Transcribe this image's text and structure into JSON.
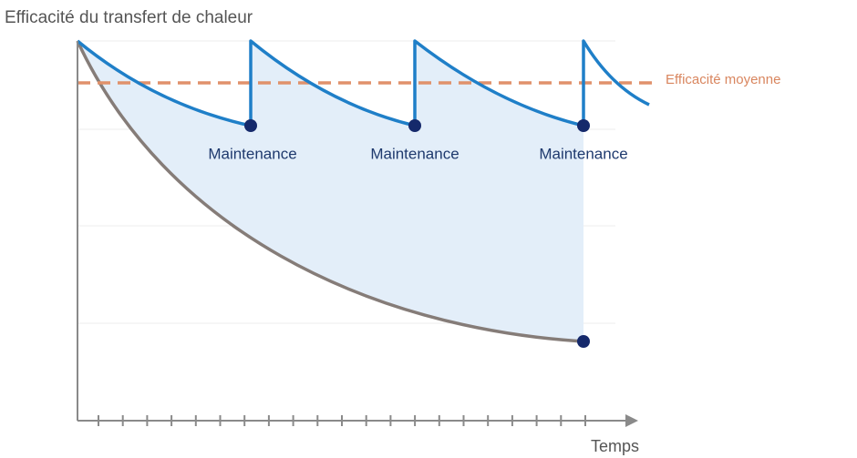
{
  "y_axis_label": "Efficacité du transfert de chaleur",
  "average_label": "Efficacité moyenne",
  "events": [
    {
      "label": "Maintenance"
    },
    {
      "label": "Maintenance"
    },
    {
      "label": "Maintenance"
    }
  ],
  "x_axis_label": "Temps"
}
